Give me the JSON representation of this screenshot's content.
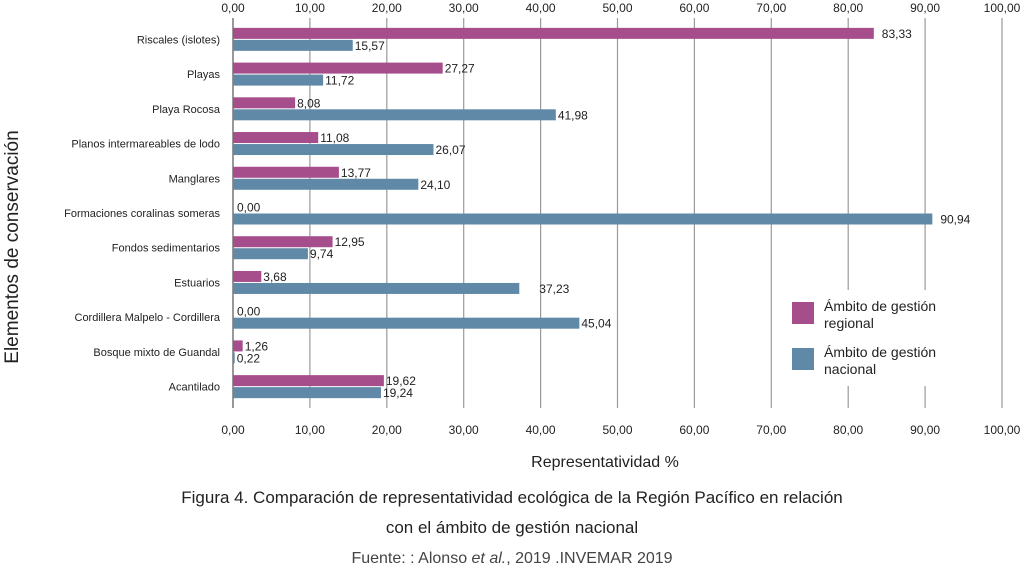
{
  "chart_data": {
    "type": "bar",
    "orientation": "horizontal",
    "categories": [
      "Riscales (islotes)",
      "Playas",
      "Playa Rocosa",
      "Planos intermareables de lodo",
      "Manglares",
      "Formaciones coralinas someras",
      "Fondos sedimentarios",
      "Estuarios",
      "Cordillera Malpelo - Cordillera",
      "Bosque mixto de Guandal",
      "Acantilado"
    ],
    "series": [
      {
        "name": "Ámbito de gestión regional",
        "color": "#a64d8c",
        "values": [
          83.33,
          27.27,
          8.08,
          11.08,
          13.77,
          0.0,
          12.95,
          3.68,
          0.0,
          1.26,
          19.62
        ],
        "labels": [
          "83,33",
          "27,27",
          "8,08",
          "11,08",
          "13,77",
          "0,00",
          "12,95",
          "3,68",
          "0,00",
          "1,26",
          "19,62"
        ]
      },
      {
        "name": "Ámbito de gestión nacional",
        "color": "#6089a8",
        "values": [
          15.57,
          11.72,
          41.98,
          26.07,
          24.1,
          90.94,
          9.74,
          37.23,
          45.04,
          0.22,
          19.24
        ],
        "labels": [
          "15,57",
          "11,72",
          "41,98",
          "26,07",
          "24,10",
          "90,94",
          "9,74",
          "37,23",
          "45,04",
          "0,22",
          "19,24"
        ]
      }
    ],
    "xlim": [
      0,
      100
    ],
    "xticks": [
      "0,00",
      "10,00",
      "20,00",
      "30,00",
      "40,00",
      "50,00",
      "60,00",
      "70,00",
      "80,00",
      "90,00",
      "100,00"
    ],
    "xlabel": "Representatividad %",
    "ylabel": "Elementos de conservación",
    "grid": true,
    "legend_position": "right",
    "ticks_top_and_bottom": true
  },
  "legend": {
    "regional_label": "Ámbito de gestión regional",
    "nacional_label": "Ámbito de gestión nacional"
  },
  "caption": {
    "line1": "Figura 4. Comparación de representatividad ecológica de la Región Pacífico en relación",
    "line2": "con el ámbito de gestión nacional",
    "source_prefix": "Fuente: : Alonso ",
    "source_italic": "et al.",
    "source_suffix": ", 2019 .INVEMAR 2019"
  }
}
